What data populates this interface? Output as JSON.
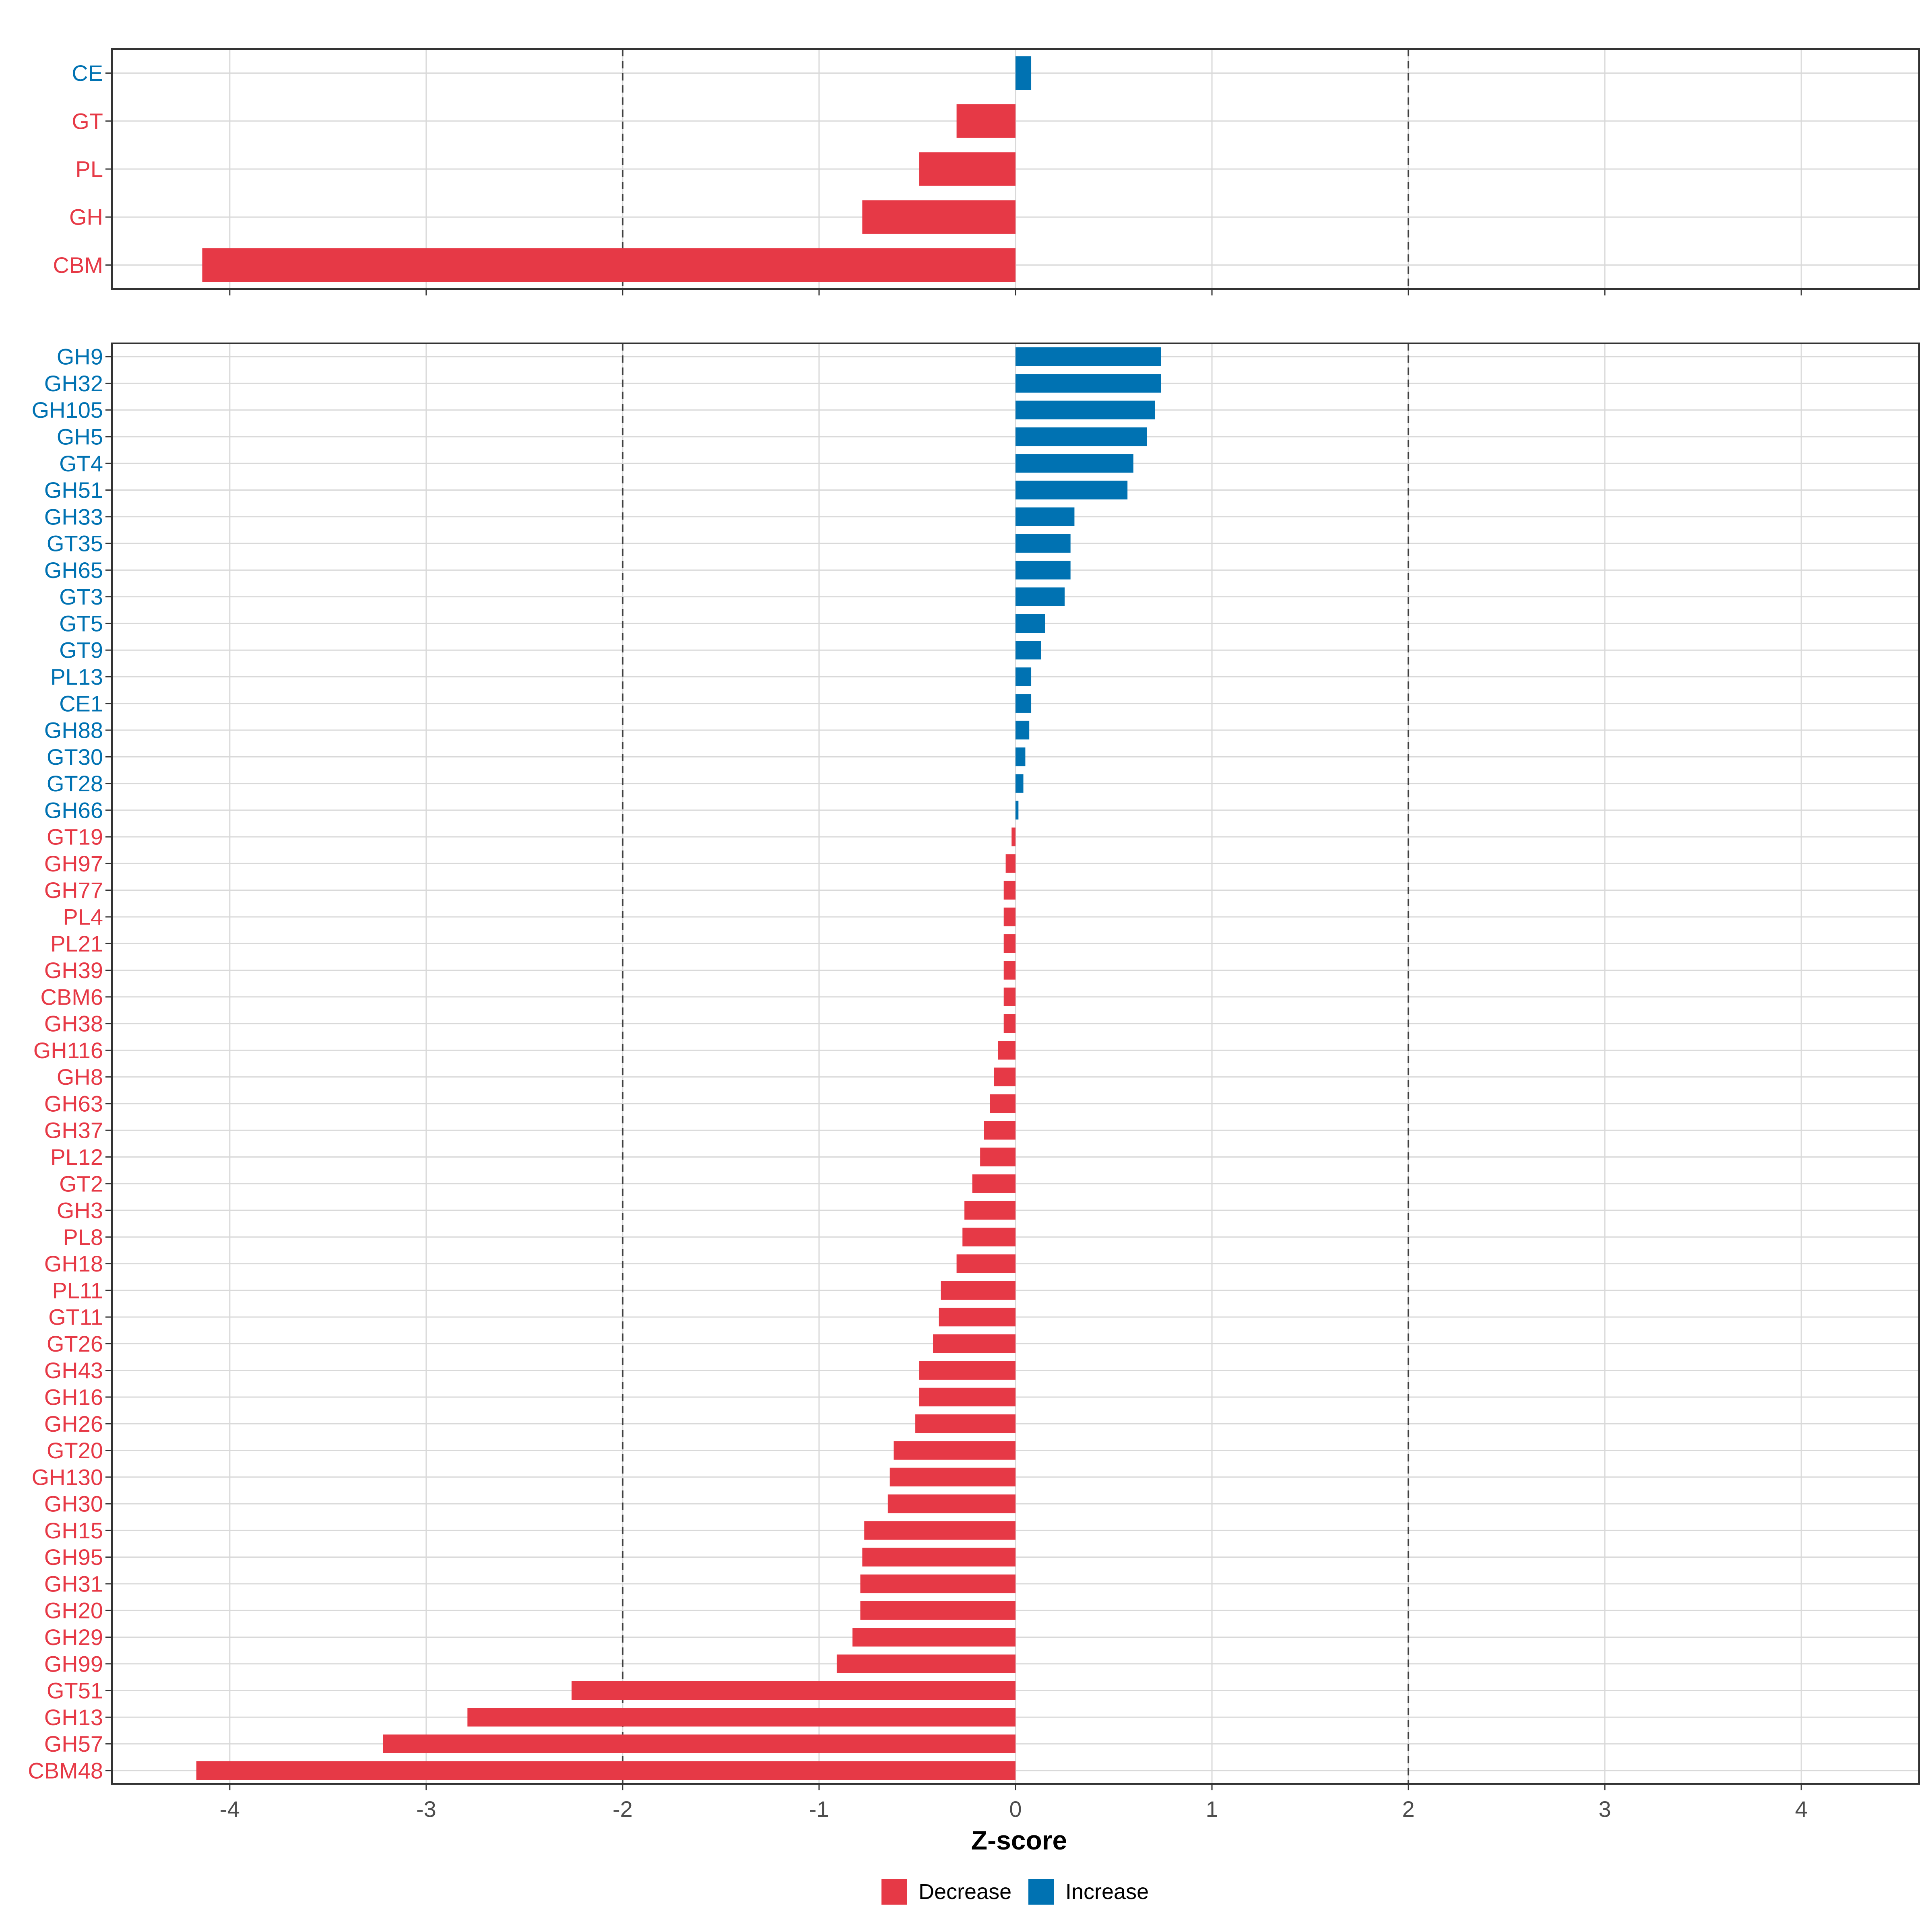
{
  "colors": {
    "decrease": "#e63946",
    "increase": "#0072b2"
  },
  "chart_data": [
    {
      "type": "bar",
      "orientation": "horizontal",
      "panel": "top",
      "categories": [
        "CE",
        "GT",
        "PL",
        "GH",
        "CBM"
      ],
      "values": [
        0.08,
        -0.3,
        -0.49,
        -0.78,
        -4.14
      ],
      "xlim": [
        -4.6,
        4.6
      ],
      "xticks": [
        -4,
        -3,
        -2,
        -1,
        0,
        1,
        2,
        3,
        4
      ],
      "reference_lines": [
        -2,
        2
      ]
    },
    {
      "type": "bar",
      "orientation": "horizontal",
      "panel": "bottom",
      "categories": [
        "GH9",
        "GH32",
        "GH105",
        "GH5",
        "GT4",
        "GH51",
        "GH33",
        "GT35",
        "GH65",
        "GT3",
        "GT5",
        "GT9",
        "PL13",
        "CE1",
        "GH88",
        "GT30",
        "GT28",
        "GH66",
        "GT19",
        "GH97",
        "GH77",
        "PL4",
        "PL21",
        "GH39",
        "CBM6",
        "GH38",
        "GH116",
        "GH8",
        "GH63",
        "GH37",
        "PL12",
        "GT2",
        "GH3",
        "PL8",
        "GH18",
        "PL11",
        "GT11",
        "GT26",
        "GH43",
        "GH16",
        "GH26",
        "GT20",
        "GH130",
        "GH30",
        "GH15",
        "GH95",
        "GH31",
        "GH20",
        "GH29",
        "GH99",
        "GT51",
        "GH13",
        "GH57",
        "CBM48"
      ],
      "values": [
        0.74,
        0.74,
        0.71,
        0.67,
        0.6,
        0.57,
        0.3,
        0.28,
        0.28,
        0.25,
        0.15,
        0.13,
        0.08,
        0.08,
        0.07,
        0.05,
        0.04,
        0.015,
        -0.02,
        -0.05,
        -0.06,
        -0.06,
        -0.06,
        -0.06,
        -0.06,
        -0.06,
        -0.09,
        -0.11,
        -0.13,
        -0.16,
        -0.18,
        -0.22,
        -0.26,
        -0.27,
        -0.3,
        -0.38,
        -0.39,
        -0.42,
        -0.49,
        -0.49,
        -0.51,
        -0.62,
        -0.64,
        -0.65,
        -0.77,
        -0.78,
        -0.79,
        -0.79,
        -0.83,
        -0.91,
        -2.26,
        -2.79,
        -3.22,
        -4.17
      ],
      "xlim": [
        -4.6,
        4.6
      ],
      "xticks": [
        -4,
        -3,
        -2,
        -1,
        0,
        1,
        2,
        3,
        4
      ],
      "xlabel": "Z-score",
      "reference_lines": [
        -2,
        2
      ]
    }
  ],
  "legend": {
    "items": [
      {
        "label": "Decrease",
        "key": "decrease"
      },
      {
        "label": "Increase",
        "key": "increase"
      }
    ]
  }
}
